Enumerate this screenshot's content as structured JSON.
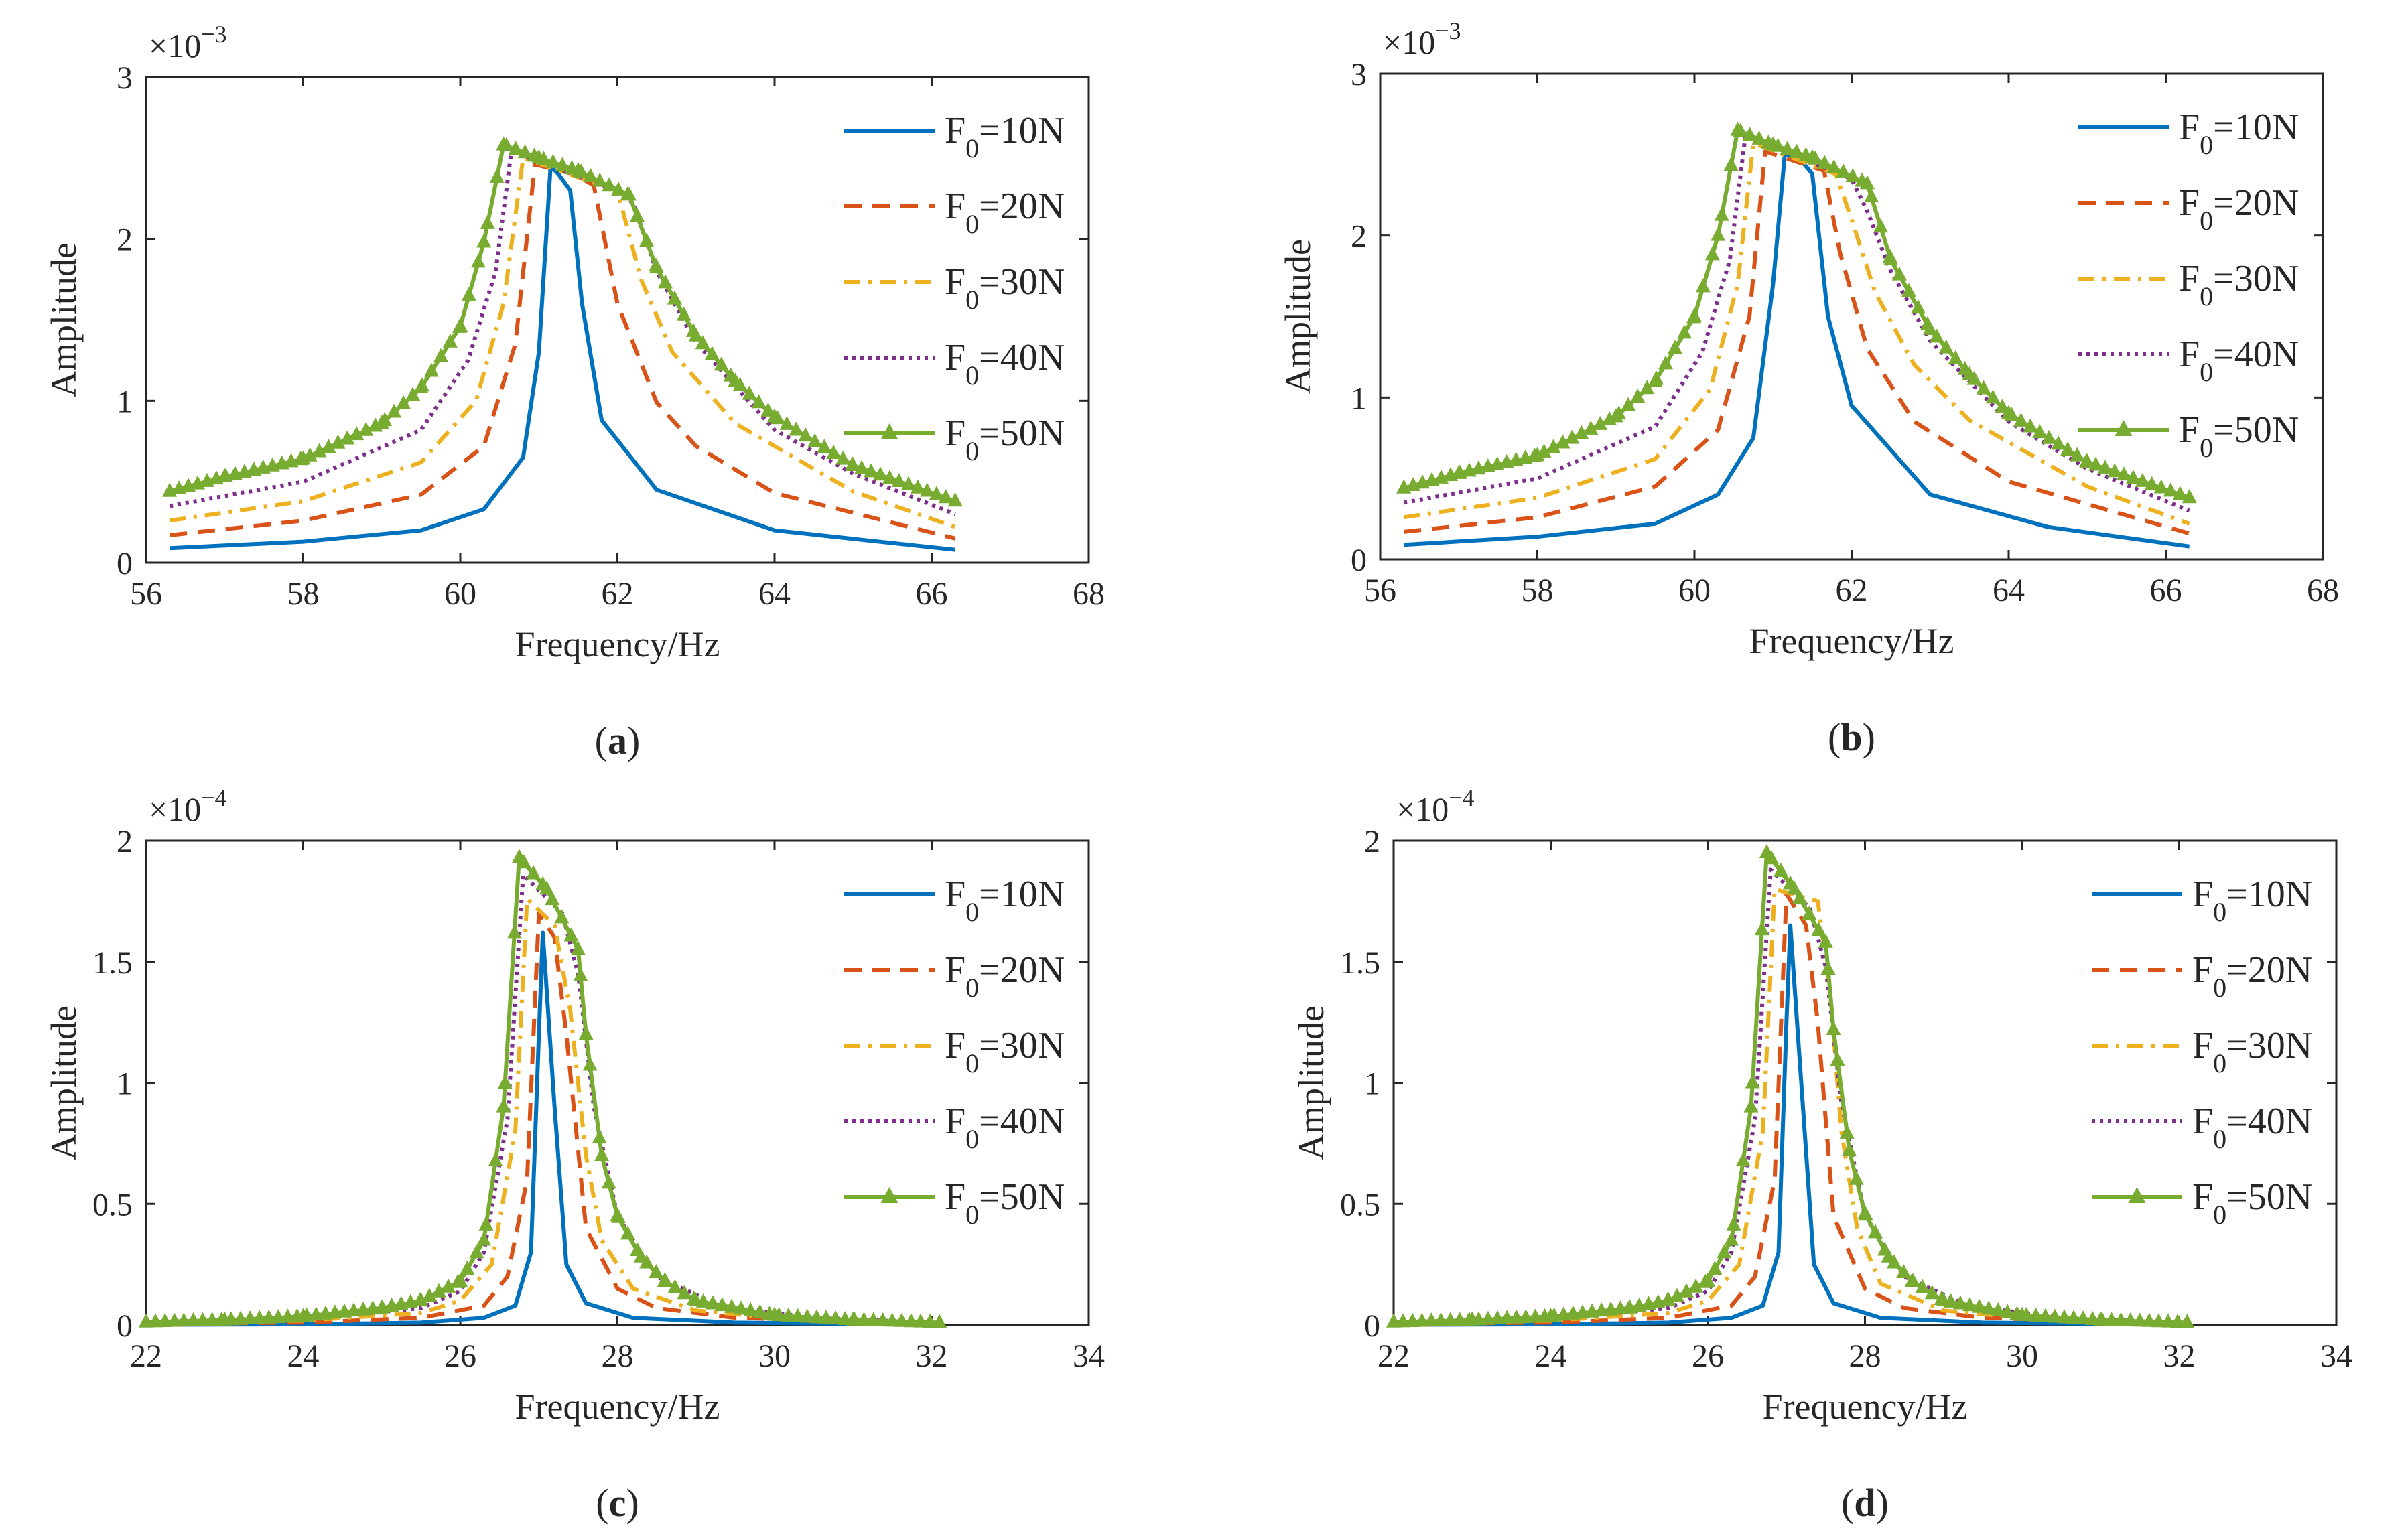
{
  "legend_labels": [
    {
      "prefix": "F",
      "sub": "0",
      "suffix": "=10N"
    },
    {
      "prefix": "F",
      "sub": "0",
      "suffix": "=20N"
    },
    {
      "prefix": "F",
      "sub": "0",
      "suffix": "=30N"
    },
    {
      "prefix": "F",
      "sub": "0",
      "suffix": "=40N"
    },
    {
      "prefix": "F",
      "sub": "0",
      "suffix": "=50N"
    }
  ],
  "series_styles": [
    {
      "color": "#0072BD",
      "dash": "solid",
      "marker": "none"
    },
    {
      "color": "#D95319",
      "dash": "dashed",
      "marker": "none"
    },
    {
      "color": "#EDB120",
      "dash": "dash-dot",
      "marker": "none"
    },
    {
      "color": "#7E2F8E",
      "dash": "dotted",
      "marker": "none"
    },
    {
      "color": "#77AC30",
      "dash": "solid",
      "marker": "triangle"
    }
  ],
  "chart_data": [
    {
      "type": "line",
      "panel_label": "a",
      "xlabel": "Frequency/Hz",
      "ylabel": "Amplitude",
      "exponent_base": "×10",
      "exponent": "−3",
      "xlim": [
        56,
        68
      ],
      "ylim": [
        0,
        3
      ],
      "xticks": [
        "56",
        "58",
        "60",
        "62",
        "64",
        "66",
        "68"
      ],
      "yticks": [
        "0",
        "1",
        "2",
        "3"
      ],
      "legend_position": "top-right",
      "grid": false,
      "series": [
        {
          "name": "F0=10N",
          "x": [
            56.3,
            58,
            59.5,
            60.3,
            60.8,
            61.0,
            61.15,
            61.25,
            61.4,
            61.55,
            61.8,
            62.5,
            64,
            66.3
          ],
          "y": [
            0.09,
            0.13,
            0.2,
            0.33,
            0.65,
            1.3,
            2.45,
            2.4,
            2.3,
            1.6,
            0.88,
            0.45,
            0.2,
            0.08
          ]
        },
        {
          "name": "F0=20N",
          "x": [
            56.3,
            58,
            59.5,
            60.3,
            60.7,
            60.95,
            61.45,
            61.7,
            62.0,
            62.5,
            63,
            64,
            66.3
          ],
          "y": [
            0.17,
            0.26,
            0.42,
            0.72,
            1.35,
            2.46,
            2.4,
            2.33,
            1.6,
            0.99,
            0.72,
            0.43,
            0.15
          ]
        },
        {
          "name": "F0=30N",
          "x": [
            56.3,
            58,
            59.5,
            60.2,
            60.55,
            60.8,
            61.8,
            62.0,
            62.3,
            62.7,
            63.5,
            65,
            66.3
          ],
          "y": [
            0.26,
            0.38,
            0.62,
            1.0,
            1.6,
            2.5,
            2.33,
            2.3,
            1.75,
            1.3,
            0.86,
            0.44,
            0.22
          ]
        },
        {
          "name": "F0=40N",
          "x": [
            56.3,
            58,
            59.5,
            60.1,
            60.45,
            60.65,
            62.0,
            62.2,
            62.5,
            63,
            64,
            65,
            66.3
          ],
          "y": [
            0.35,
            0.5,
            0.82,
            1.25,
            1.8,
            2.54,
            2.3,
            2.22,
            1.8,
            1.36,
            0.82,
            0.55,
            0.3
          ]
        },
        {
          "name": "F0=50N",
          "x": [
            56.3,
            57,
            58,
            59,
            59.5,
            60.0,
            60.3,
            60.55,
            61.0,
            61.5,
            62.15,
            62.5,
            63,
            63.5,
            64,
            65,
            66.3
          ],
          "y": [
            0.44,
            0.53,
            0.64,
            0.86,
            1.08,
            1.46,
            1.98,
            2.58,
            2.5,
            2.42,
            2.27,
            1.82,
            1.4,
            1.12,
            0.9,
            0.6,
            0.38
          ]
        }
      ]
    },
    {
      "type": "line",
      "panel_label": "b",
      "xlabel": "Frequency/Hz",
      "ylabel": "Amplitude",
      "exponent_base": "×10",
      "exponent": "−3",
      "xlim": [
        56,
        68
      ],
      "ylim": [
        0,
        3
      ],
      "xticks": [
        "56",
        "58",
        "60",
        "62",
        "64",
        "66",
        "68"
      ],
      "yticks": [
        "0",
        "1",
        "2",
        "3"
      ],
      "legend_position": "top-right",
      "grid": false,
      "series": [
        {
          "name": "F0=10N",
          "x": [
            56.3,
            58,
            59.5,
            60.3,
            60.75,
            61.0,
            61.15,
            61.35,
            61.5,
            61.7,
            62.0,
            63,
            64.5,
            66.3
          ],
          "y": [
            0.09,
            0.14,
            0.22,
            0.4,
            0.75,
            1.7,
            2.5,
            2.47,
            2.38,
            1.5,
            0.95,
            0.4,
            0.2,
            0.08
          ]
        },
        {
          "name": "F0=20N",
          "x": [
            56.3,
            58,
            59.5,
            60.3,
            60.7,
            60.9,
            61.65,
            61.85,
            62.2,
            62.8,
            64,
            66.3
          ],
          "y": [
            0.17,
            0.26,
            0.45,
            0.8,
            1.5,
            2.52,
            2.4,
            1.9,
            1.3,
            0.85,
            0.48,
            0.16
          ]
        },
        {
          "name": "F0=30N",
          "x": [
            56.3,
            58,
            59.5,
            60.2,
            60.55,
            60.75,
            61.8,
            62.0,
            62.3,
            62.8,
            63.5,
            65,
            66.3
          ],
          "y": [
            0.26,
            0.38,
            0.62,
            1.05,
            1.7,
            2.57,
            2.38,
            2.1,
            1.65,
            1.2,
            0.86,
            0.45,
            0.22
          ]
        },
        {
          "name": "F0=40N",
          "x": [
            56.3,
            58,
            59.5,
            60.1,
            60.45,
            60.65,
            62.0,
            62.2,
            62.5,
            63,
            64,
            65,
            66.3
          ],
          "y": [
            0.35,
            0.5,
            0.82,
            1.28,
            1.85,
            2.62,
            2.35,
            2.15,
            1.78,
            1.35,
            0.85,
            0.56,
            0.3
          ]
        },
        {
          "name": "F0=50N",
          "x": [
            56.3,
            57,
            58,
            59,
            59.5,
            60.0,
            60.3,
            60.55,
            61.0,
            61.5,
            62.2,
            62.5,
            63,
            63.5,
            64,
            65,
            66.3
          ],
          "y": [
            0.44,
            0.53,
            0.64,
            0.88,
            1.1,
            1.5,
            2.0,
            2.65,
            2.56,
            2.48,
            2.32,
            1.85,
            1.42,
            1.14,
            0.9,
            0.6,
            0.38
          ]
        }
      ]
    },
    {
      "type": "line",
      "panel_label": "c",
      "xlabel": "Frequency/Hz",
      "ylabel": "Amplitude",
      "exponent_base": "×10",
      "exponent": "−4",
      "xlim": [
        22,
        34
      ],
      "ylim": [
        0,
        2
      ],
      "xticks": [
        "22",
        "24",
        "26",
        "28",
        "30",
        "32",
        "34"
      ],
      "yticks": [
        "0",
        "0.5",
        "1",
        "1.5",
        "2"
      ],
      "legend_position": "top-right",
      "grid": false,
      "series": [
        {
          "name": "F0=10N",
          "x": [
            22,
            24,
            25.5,
            26.3,
            26.7,
            26.9,
            27.0,
            27.05,
            27.2,
            27.35,
            27.6,
            28.2,
            29.5,
            32
          ],
          "y": [
            0.001,
            0.003,
            0.01,
            0.03,
            0.08,
            0.3,
            1.2,
            1.62,
            0.9,
            0.25,
            0.09,
            0.03,
            0.01,
            0.002
          ]
        },
        {
          "name": "F0=20N",
          "x": [
            22,
            24,
            25.5,
            26.3,
            26.6,
            26.85,
            27.0,
            27.2,
            27.35,
            27.6,
            28.0,
            28.5,
            29.5,
            32
          ],
          "y": [
            0.004,
            0.01,
            0.03,
            0.08,
            0.2,
            0.6,
            1.7,
            1.6,
            1.2,
            0.4,
            0.15,
            0.07,
            0.03,
            0.005
          ]
        },
        {
          "name": "F0=30N",
          "x": [
            22,
            24,
            25.5,
            26.0,
            26.4,
            26.7,
            26.85,
            27.2,
            27.4,
            27.6,
            27.8,
            28.2,
            29,
            30,
            32
          ],
          "y": [
            0.006,
            0.018,
            0.05,
            0.1,
            0.25,
            0.8,
            1.76,
            1.65,
            1.3,
            0.7,
            0.35,
            0.15,
            0.06,
            0.03,
            0.008
          ]
        },
        {
          "name": "F0=40N",
          "x": [
            22,
            24,
            25.5,
            26.0,
            26.3,
            26.6,
            26.8,
            27.3,
            27.5,
            27.7,
            28.0,
            28.5,
            29.3,
            30.5,
            32
          ],
          "y": [
            0.008,
            0.025,
            0.07,
            0.14,
            0.3,
            0.85,
            1.86,
            1.7,
            1.45,
            0.9,
            0.45,
            0.2,
            0.08,
            0.03,
            0.01
          ]
        },
        {
          "name": "F0=50N",
          "x": [
            22,
            23,
            24,
            25,
            25.5,
            26.0,
            26.3,
            26.55,
            26.75,
            27.1,
            27.5,
            27.6,
            27.8,
            28.0,
            28.3,
            28.6,
            29,
            30,
            31,
            32.1
          ],
          "y": [
            0.012,
            0.02,
            0.035,
            0.07,
            0.1,
            0.18,
            0.35,
            0.9,
            1.93,
            1.8,
            1.55,
            1.2,
            0.7,
            0.45,
            0.28,
            0.18,
            0.1,
            0.04,
            0.02,
            0.01
          ]
        }
      ]
    },
    {
      "type": "line",
      "panel_label": "d",
      "xlabel": "Frequency/Hz",
      "ylabel": "Amplitude",
      "exponent_base": "×10",
      "exponent": "−4",
      "xlim": [
        22,
        34
      ],
      "ylim": [
        0,
        2
      ],
      "xticks": [
        "22",
        "24",
        "26",
        "28",
        "30",
        "32",
        "34"
      ],
      "yticks": [
        "0",
        "0.5",
        "1",
        "1.5",
        "2"
      ],
      "legend_position": "top-right",
      "grid": false,
      "series": [
        {
          "name": "F0=10N",
          "x": [
            22,
            24,
            25.5,
            26.3,
            26.7,
            26.9,
            27.0,
            27.05,
            27.2,
            27.35,
            27.6,
            28.2,
            29.5,
            32
          ],
          "y": [
            0.001,
            0.003,
            0.01,
            0.03,
            0.08,
            0.3,
            1.25,
            1.65,
            0.95,
            0.25,
            0.09,
            0.03,
            0.01,
            0.002
          ]
        },
        {
          "name": "F0=20N",
          "x": [
            22,
            24,
            25.5,
            26.3,
            26.6,
            26.85,
            27.0,
            27.25,
            27.4,
            27.6,
            28.0,
            28.5,
            29.5,
            32
          ],
          "y": [
            0.004,
            0.01,
            0.03,
            0.08,
            0.2,
            0.6,
            1.78,
            1.65,
            1.25,
            0.45,
            0.15,
            0.07,
            0.03,
            0.005
          ]
        },
        {
          "name": "F0=30N",
          "x": [
            22,
            24,
            25.5,
            26.0,
            26.4,
            26.7,
            26.85,
            27.4,
            27.55,
            27.7,
            27.9,
            28.2,
            29,
            30,
            32
          ],
          "y": [
            0.006,
            0.018,
            0.05,
            0.1,
            0.25,
            0.8,
            1.8,
            1.75,
            1.4,
            0.8,
            0.4,
            0.17,
            0.06,
            0.03,
            0.008
          ]
        },
        {
          "name": "F0=40N",
          "x": [
            22,
            24,
            25.5,
            26.0,
            26.3,
            26.6,
            26.8,
            27.3,
            27.5,
            27.7,
            28.0,
            28.5,
            29.3,
            30.5,
            32
          ],
          "y": [
            0.008,
            0.025,
            0.07,
            0.14,
            0.3,
            0.85,
            1.88,
            1.72,
            1.48,
            0.92,
            0.45,
            0.2,
            0.08,
            0.03,
            0.01
          ]
        },
        {
          "name": "F0=50N",
          "x": [
            22,
            23,
            24,
            25,
            25.5,
            26.0,
            26.3,
            26.55,
            26.75,
            27.1,
            27.5,
            27.6,
            27.8,
            28.0,
            28.3,
            28.6,
            29,
            30,
            31,
            32.1
          ],
          "y": [
            0.012,
            0.02,
            0.035,
            0.07,
            0.1,
            0.18,
            0.35,
            0.9,
            1.95,
            1.8,
            1.58,
            1.22,
            0.72,
            0.46,
            0.28,
            0.18,
            0.1,
            0.04,
            0.02,
            0.01
          ]
        }
      ]
    }
  ]
}
